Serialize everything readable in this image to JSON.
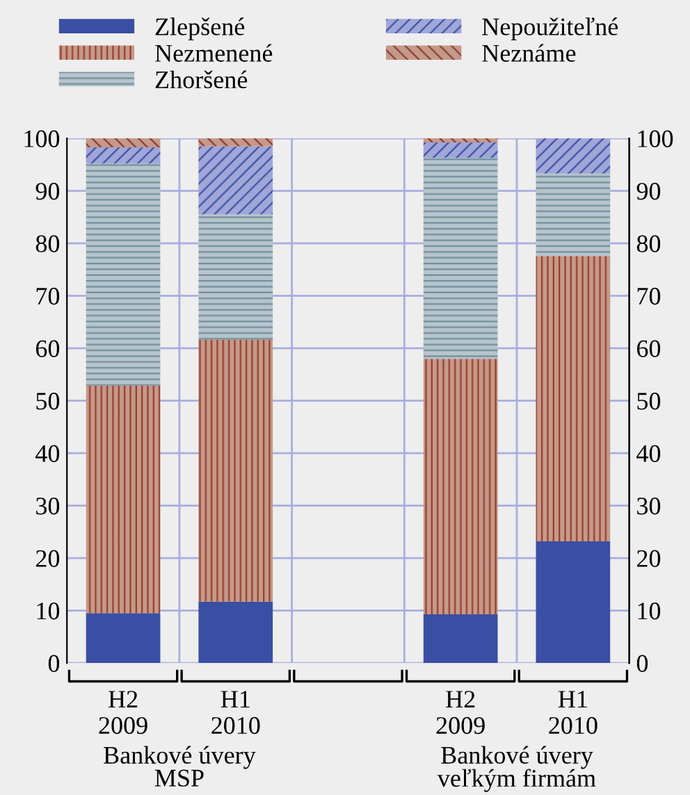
{
  "chart_data": {
    "type": "bar",
    "stacked": true,
    "categories": [
      "H2\n2009",
      "H1\n2010",
      null,
      "H2\n2009",
      "H1\n2010"
    ],
    "series": [
      {
        "name": "Zlepšené",
        "color": "#3a4fa3",
        "values": [
          9.5,
          11.7,
          null,
          9.3,
          23.2
        ]
      },
      {
        "name": "Nezmenené",
        "color": "#c49a88",
        "values": [
          43.4,
          49.9,
          null,
          48.7,
          54.4
        ]
      },
      {
        "name": "Zhoršené",
        "color": "#b8c4cc",
        "values": [
          42.3,
          23.9,
          null,
          38.3,
          15.7
        ]
      },
      {
        "name": "Nepoužiteľné",
        "color": "#a0a6d8",
        "values": [
          3.1,
          13.0,
          null,
          2.9,
          6.7
        ]
      },
      {
        "name": "Neznáme",
        "color": "#c4998a",
        "values": [
          1.7,
          1.5,
          null,
          0.8,
          0
        ]
      }
    ],
    "ylim": [
      0,
      100
    ],
    "yticks": [
      0,
      10,
      20,
      30,
      40,
      50,
      60,
      70,
      80,
      90,
      100
    ],
    "y2lim": [
      0,
      100
    ],
    "y2ticks": [
      0,
      10,
      20,
      30,
      40,
      50,
      60,
      70,
      80,
      90,
      100
    ],
    "grid": true,
    "legend": "top",
    "annotations": [
      "Bankové úvery\nMSP",
      "Bankové úvery\nveľkým firmám"
    ]
  }
}
